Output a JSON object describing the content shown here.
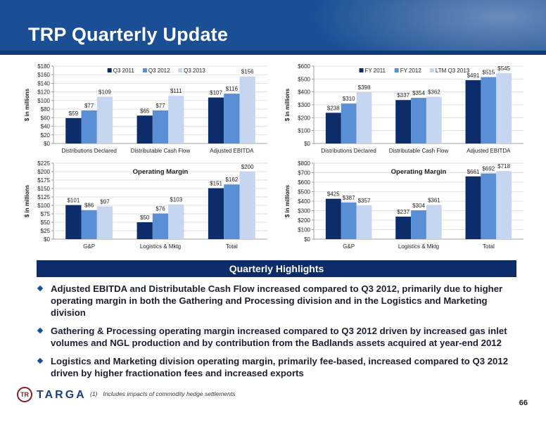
{
  "title": "TRP Quarterly Update",
  "colors": {
    "dark": "#0c2d69",
    "mid": "#5a8fd6",
    "light": "#c6d6f0",
    "header": "#1a4f95"
  },
  "chart_data": [
    {
      "type": "bar",
      "title": "",
      "ylabel": "$ in millions",
      "ylim": [
        0,
        180
      ],
      "yticks": [
        0,
        20,
        40,
        60,
        80,
        100,
        120,
        140,
        160,
        180
      ],
      "ytick_labels": [
        "$0",
        "$20",
        "$40",
        "$60",
        "$80",
        "$100",
        "$120",
        "$140",
        "$160",
        "$180"
      ],
      "categories": [
        "Distributions Declared",
        "Distributable Cash Flow",
        "Adjusted EBITDA"
      ],
      "series": [
        {
          "name": "Q3 2011",
          "values": [
            59,
            65,
            107
          ],
          "labels": [
            "$59",
            "$65",
            "$107"
          ]
        },
        {
          "name": "Q3 2012",
          "values": [
            77,
            77,
            116
          ],
          "labels": [
            "$77",
            "$77",
            "$116"
          ]
        },
        {
          "name": "Q3 2013",
          "values": [
            109,
            111,
            156
          ],
          "labels": [
            "$109",
            "$111",
            "$156"
          ]
        }
      ],
      "legend": "top"
    },
    {
      "type": "bar",
      "title": "",
      "ylabel": "$ in millions",
      "ylim": [
        0,
        600
      ],
      "yticks": [
        0,
        100,
        200,
        300,
        400,
        500,
        600
      ],
      "ytick_labels": [
        "$0",
        "$100",
        "$200",
        "$300",
        "$400",
        "$500",
        "$600"
      ],
      "categories": [
        "Distributions Declared",
        "Distributable Cash Flow",
        "Adjusted EBITDA"
      ],
      "series": [
        {
          "name": "FY 2011",
          "values": [
            238,
            337,
            491
          ],
          "labels": [
            "$238",
            "$337",
            "$491"
          ]
        },
        {
          "name": "FY 2012",
          "values": [
            310,
            354,
            515
          ],
          "labels": [
            "$310",
            "$354",
            "$515"
          ]
        },
        {
          "name": "LTM Q3 2013",
          "values": [
            398,
            362,
            545
          ],
          "labels": [
            "$398",
            "$362",
            "$545"
          ]
        }
      ],
      "legend": "top"
    },
    {
      "type": "bar",
      "title": "Operating Margin",
      "ylabel": "$ in millions",
      "ylim": [
        0,
        225
      ],
      "yticks": [
        0,
        25,
        50,
        75,
        100,
        125,
        150,
        175,
        200,
        225
      ],
      "ytick_labels": [
        "$0",
        "$25",
        "$50",
        "$75",
        "$100",
        "$125",
        "$150",
        "$175",
        "$200",
        "$225"
      ],
      "categories": [
        "G&P",
        "Logistics & Mktg",
        "Total"
      ],
      "series": [
        {
          "name": "Q3 2011",
          "values": [
            101,
            50,
            151
          ],
          "labels": [
            "$101",
            "$50",
            "$151"
          ]
        },
        {
          "name": "Q3 2012",
          "values": [
            86,
            76,
            162
          ],
          "labels": [
            "$86",
            "$76",
            "$162"
          ]
        },
        {
          "name": "Q3 2013",
          "values": [
            97,
            103,
            200
          ],
          "labels": [
            "$97",
            "$103",
            "$200"
          ]
        }
      ]
    },
    {
      "type": "bar",
      "title": "Operating Margin",
      "ylabel": "$ in millions",
      "ylim": [
        0,
        800
      ],
      "yticks": [
        0,
        100,
        200,
        300,
        400,
        500,
        600,
        700,
        800
      ],
      "ytick_labels": [
        "$0",
        "$100",
        "$200",
        "$300",
        "$400",
        "$500",
        "$600",
        "$700",
        "$800"
      ],
      "categories": [
        "G&P",
        "Logistics & Mktg",
        "Total"
      ],
      "series": [
        {
          "name": "FY 2011",
          "values": [
            425,
            237,
            661
          ],
          "labels": [
            "$425",
            "$237",
            "$661"
          ]
        },
        {
          "name": "FY 2012",
          "values": [
            387,
            304,
            692
          ],
          "labels": [
            "$387",
            "$304",
            "$692"
          ]
        },
        {
          "name": "LTM Q3 2013",
          "values": [
            357,
            361,
            718
          ],
          "labels": [
            "$357",
            "$361",
            "$718"
          ]
        }
      ]
    }
  ],
  "highlights": {
    "heading": "Quarterly Highlights",
    "bullets": [
      "Adjusted EBITDA and Distributable Cash Flow increased compared to Q3 2012, primarily due to higher operating margin in both the Gathering and Processing division and in the Logistics and Marketing division",
      "Gathering & Processing operating margin increased compared to Q3 2012 driven by increased gas inlet volumes and NGL production and by contribution from the Badlands assets acquired at year-end 2012",
      "Logistics and Marketing division operating margin, primarily fee-based, increased compared to Q3 2012 driven by higher fractionation fees and increased exports"
    ]
  },
  "footer": {
    "logo_text": "TARGA",
    "logo_mark": "TR",
    "footnote_number": "(1)",
    "footnote": "Includes impacts of commodity hedge settlements",
    "page_number": "66"
  }
}
